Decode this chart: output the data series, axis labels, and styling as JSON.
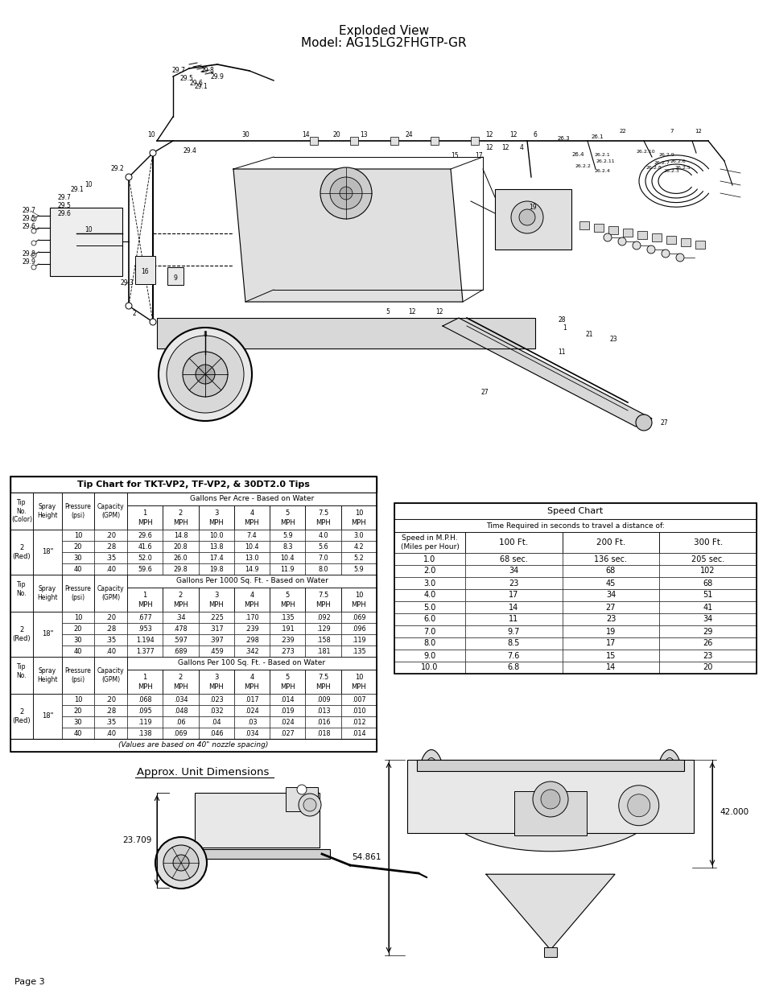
{
  "title_line1": "Exploded View",
  "title_line2": "Model: AG15LG2FHGTP-GR",
  "page_label": "Page 3",
  "approx_dimensions_title": "Approx. Unit Dimensions",
  "dim_width": "42.000",
  "dim_height": "54.861",
  "dim_depth": "23.709",
  "tip_chart_title": "Tip Chart for TKT-VP2, TF-VP2, & 30DT2.0 Tips",
  "tip_section1_header": "Gallons Per Acre - Based on Water",
  "tip_section2_header": "Gallons Per 1000 Sq. Ft. - Based on Water",
  "tip_section3_header": "Gallons Per 100 Sq. Ft. - Based on Water",
  "speed_chart_title": "Speed Chart",
  "speed_chart_subtitle": "Time Required in seconds to travel a distance of:",
  "speed_col_headers": [
    "Speed in M.P.H.\n(Miles per Hour)",
    "100 Ft.",
    "200 Ft.",
    "300 Ft."
  ],
  "speed_data": [
    [
      "1.0",
      "68 sec.",
      "136 sec.",
      "205 sec."
    ],
    [
      "2.0",
      "34",
      "68",
      "102"
    ],
    [
      "3.0",
      "23",
      "45",
      "68"
    ],
    [
      "4.0",
      "17",
      "34",
      "51"
    ],
    [
      "5.0",
      "14",
      "27",
      "41"
    ],
    [
      "6.0",
      "11",
      "23",
      "34"
    ],
    [
      "7.0",
      "9.7",
      "19",
      "29"
    ],
    [
      "8.0",
      "8.5",
      "17",
      "26"
    ],
    [
      "9.0",
      "7.6",
      "15",
      "23"
    ],
    [
      "10.0",
      "6.8",
      "14",
      "20"
    ]
  ],
  "mph_headers": [
    "1\nMPH",
    "2\nMPH",
    "3\nMPH",
    "4\nMPH",
    "5\nMPH",
    "7.5\nMPH",
    "10\nMPH"
  ],
  "psi_values": [
    "10",
    "20",
    "30",
    "40"
  ],
  "gpm_values": [
    ".20",
    ".28",
    ".35",
    ".40"
  ],
  "gpa_data": [
    [
      "29.6",
      "14.8",
      "10.0",
      "7.4",
      "5.9",
      "4.0",
      "3.0"
    ],
    [
      "41.6",
      "20.8",
      "13.8",
      "10.4",
      "8.3",
      "5.6",
      "4.2"
    ],
    [
      "52.0",
      "26.0",
      "17.4",
      "13.0",
      "10.4",
      "7.0",
      "5.2"
    ],
    [
      "59.6",
      "29.8",
      "19.8",
      "14.9",
      "11.9",
      "8.0",
      "5.9"
    ]
  ],
  "gp1000_data": [
    [
      ".677",
      ".34",
      ".225",
      ".170",
      ".135",
      ".092",
      ".069"
    ],
    [
      ".953",
      ".478",
      ".317",
      ".239",
      ".191",
      ".129",
      ".096"
    ],
    [
      "1.194",
      ".597",
      ".397",
      ".298",
      ".239",
      ".158",
      ".119"
    ],
    [
      "1.377",
      ".689",
      ".459",
      ".342",
      ".273",
      ".181",
      ".135"
    ]
  ],
  "gp100_data": [
    [
      ".068",
      ".034",
      ".023",
      ".017",
      ".014",
      ".009",
      ".007"
    ],
    [
      ".095",
      ".048",
      ".032",
      ".024",
      ".019",
      ".013",
      ".010"
    ],
    [
      ".119",
      ".06",
      ".04",
      ".03",
      ".024",
      ".016",
      ".012"
    ],
    [
      ".138",
      ".069",
      ".046",
      ".034",
      ".027",
      ".018",
      ".014"
    ]
  ],
  "footnote": "(Values are based on 40\" nozzle spacing)",
  "bg_color": "#ffffff"
}
